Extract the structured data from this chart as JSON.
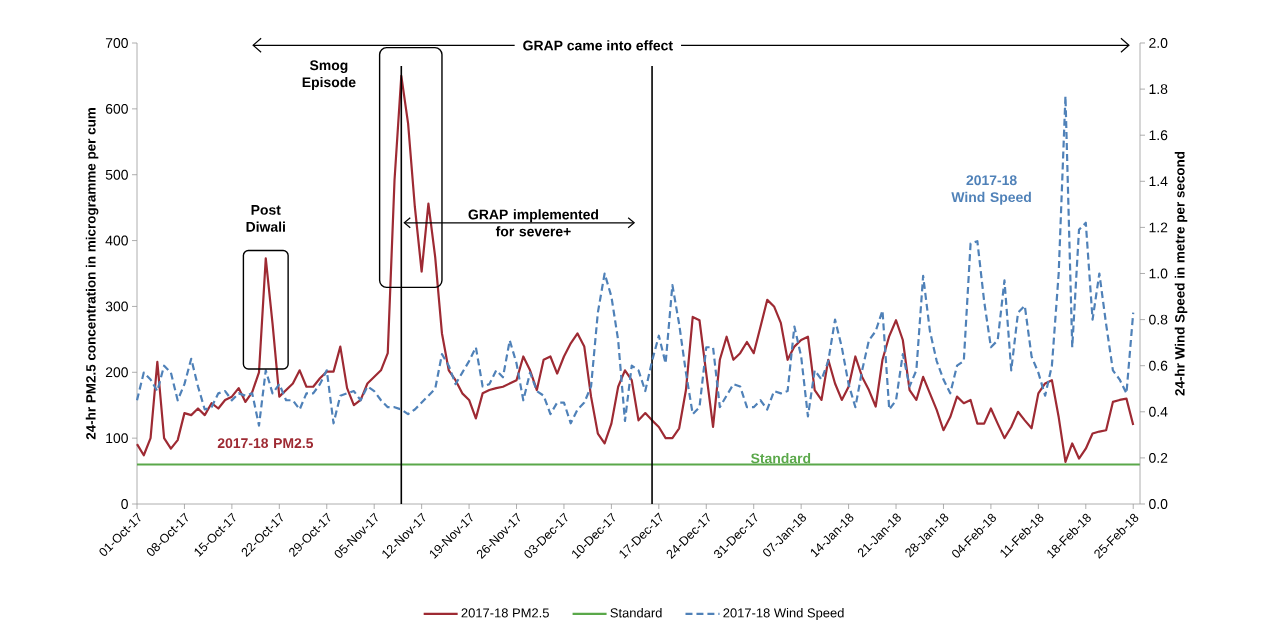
{
  "chart_data": {
    "type": "line",
    "ylabel": "24-hr PM2.5 concentration in microgramme per cum",
    "y2label": "24-hr Wind Speed in metre per second",
    "x": [
      "2017-10-01",
      "2017-10-02",
      "2017-10-03",
      "2017-10-04",
      "2017-10-05",
      "2017-10-06",
      "2017-10-07",
      "2017-10-08",
      "2017-10-09",
      "2017-10-10",
      "2017-10-11",
      "2017-10-12",
      "2017-10-13",
      "2017-10-14",
      "2017-10-15",
      "2017-10-16",
      "2017-10-17",
      "2017-10-18",
      "2017-10-19",
      "2017-10-20",
      "2017-10-21",
      "2017-10-22",
      "2017-10-23",
      "2017-10-24",
      "2017-10-25",
      "2017-10-26",
      "2017-10-27",
      "2017-10-28",
      "2017-10-29",
      "2017-10-30",
      "2017-10-31",
      "2017-11-01",
      "2017-11-02",
      "2017-11-03",
      "2017-11-04",
      "2017-11-05",
      "2017-11-06",
      "2017-11-07",
      "2017-11-08",
      "2017-11-09",
      "2017-11-10",
      "2017-11-11",
      "2017-11-12",
      "2017-11-13",
      "2017-11-14",
      "2017-11-15",
      "2017-11-16",
      "2017-11-17",
      "2017-11-18",
      "2017-11-19",
      "2017-11-20",
      "2017-11-21",
      "2017-11-22",
      "2017-11-23",
      "2017-11-24",
      "2017-11-25",
      "2017-11-26",
      "2017-11-27",
      "2017-11-28",
      "2017-11-29",
      "2017-11-30",
      "2017-12-01",
      "2017-12-02",
      "2017-12-03",
      "2017-12-04",
      "2017-12-05",
      "2017-12-06",
      "2017-12-07",
      "2017-12-08",
      "2017-12-09",
      "2017-12-10",
      "2017-12-11",
      "2017-12-12",
      "2017-12-13",
      "2017-12-14",
      "2017-12-15",
      "2017-12-16",
      "2017-12-17",
      "2017-12-18",
      "2017-12-19",
      "2017-12-20",
      "2017-12-21",
      "2017-12-22",
      "2017-12-23",
      "2017-12-24",
      "2017-12-25",
      "2017-12-26",
      "2017-12-27",
      "2017-12-28",
      "2017-12-29",
      "2017-12-30",
      "2017-12-31",
      "2018-01-01",
      "2018-01-02",
      "2018-01-03",
      "2018-01-04",
      "2018-01-05",
      "2018-01-06",
      "2018-01-07",
      "2018-01-08",
      "2018-01-09",
      "2018-01-10",
      "2018-01-11",
      "2018-01-12",
      "2018-01-13",
      "2018-01-14",
      "2018-01-15",
      "2018-01-16",
      "2018-01-17",
      "2018-01-18",
      "2018-01-19",
      "2018-01-20",
      "2018-01-21",
      "2018-01-22",
      "2018-01-23",
      "2018-01-24",
      "2018-01-25",
      "2018-01-26",
      "2018-01-27",
      "2018-01-28",
      "2018-01-29",
      "2018-01-30",
      "2018-01-31",
      "2018-02-01",
      "2018-02-02",
      "2018-02-03",
      "2018-02-04",
      "2018-02-05",
      "2018-02-06",
      "2018-02-07",
      "2018-02-08",
      "2018-02-09",
      "2018-02-10",
      "2018-02-11",
      "2018-02-12",
      "2018-02-13",
      "2018-02-14",
      "2018-02-15",
      "2018-02-16",
      "2018-02-17",
      "2018-02-18",
      "2018-02-19",
      "2018-02-20",
      "2018-02-21",
      "2018-02-22",
      "2018-02-23",
      "2018-02-24",
      "2018-02-25"
    ],
    "series": [
      {
        "name": "2017-18 PM2.5",
        "color": "#9e2a33",
        "line_style": "solid",
        "values": [
          91,
          74,
          100,
          216,
          100,
          84,
          97,
          138,
          135,
          145,
          135,
          153,
          145,
          158,
          163,
          176,
          155,
          170,
          200,
          373,
          274,
          163,
          173,
          183,
          203,
          178,
          178,
          191,
          201,
          201,
          239,
          176,
          150,
          158,
          183,
          193,
          203,
          229,
          492,
          650,
          578,
          451,
          353,
          456,
          375,
          259,
          203,
          188,
          168,
          158,
          130,
          168,
          173,
          176,
          178,
          183,
          188,
          224,
          203,
          173,
          219,
          224,
          198,
          224,
          244,
          259,
          239,
          163,
          107,
          92,
          122,
          178,
          203,
          188,
          127,
          138,
          127,
          117,
          100,
          100,
          115,
          173,
          284,
          279,
          198,
          117,
          219,
          254,
          219,
          229,
          246,
          229,
          269,
          310,
          300,
          275,
          219,
          239,
          249,
          254,
          173,
          158,
          219,
          183,
          158,
          178,
          224,
          193,
          173,
          148,
          219,
          255,
          279,
          249,
          173,
          158,
          193,
          168,
          143,
          112,
          132,
          163,
          153,
          158,
          122,
          122,
          145,
          122,
          100,
          117,
          140,
          127,
          115,
          168,
          183,
          188,
          132,
          64,
          92,
          69,
          84,
          107,
          110,
          112,
          155,
          158,
          160,
          120
        ]
      },
      {
        "name": "Standard",
        "color": "#5aa84a",
        "line_style": "solid",
        "x": [
          "2017-10-01",
          "2018-02-26"
        ],
        "values": [
          60,
          60
        ]
      },
      {
        "name": "2017-18 Wind Speed",
        "color": "#4f81b8",
        "line_style": "dashed",
        "axis": "y2",
        "values": [
          0.45,
          0.57,
          0.54,
          0.49,
          0.6,
          0.57,
          0.45,
          0.52,
          0.63,
          0.51,
          0.41,
          0.42,
          0.48,
          0.49,
          0.45,
          0.48,
          0.47,
          0.48,
          0.34,
          0.58,
          0.48,
          0.52,
          0.45,
          0.45,
          0.41,
          0.48,
          0.48,
          0.52,
          0.58,
          0.35,
          0.47,
          0.48,
          0.49,
          0.45,
          0.51,
          0.49,
          0.45,
          0.42,
          0.42,
          0.41,
          0.39,
          0.41,
          0.44,
          0.47,
          0.5,
          0.65,
          0.6,
          0.52,
          0.57,
          0.62,
          0.68,
          0.51,
          0.52,
          0.58,
          0.55,
          0.71,
          0.61,
          0.45,
          0.57,
          0.49,
          0.47,
          0.39,
          0.44,
          0.44,
          0.35,
          0.41,
          0.44,
          0.51,
          0.83,
          1.0,
          0.9,
          0.71,
          0.36,
          0.6,
          0.58,
          0.49,
          0.62,
          0.73,
          0.61,
          0.95,
          0.78,
          0.57,
          0.39,
          0.42,
          0.68,
          0.68,
          0.42,
          0.47,
          0.52,
          0.51,
          0.42,
          0.42,
          0.45,
          0.41,
          0.49,
          0.48,
          0.49,
          0.77,
          0.64,
          0.38,
          0.58,
          0.54,
          0.62,
          0.8,
          0.68,
          0.52,
          0.42,
          0.58,
          0.71,
          0.75,
          0.84,
          0.41,
          0.45,
          0.65,
          0.51,
          0.58,
          0.99,
          0.75,
          0.62,
          0.54,
          0.48,
          0.6,
          0.62,
          1.13,
          1.14,
          0.88,
          0.68,
          0.71,
          0.97,
          0.58,
          0.83,
          0.86,
          0.64,
          0.57,
          0.47,
          0.6,
          1.0,
          1.77,
          0.68,
          1.19,
          1.22,
          0.8,
          1.0,
          0.78,
          0.58,
          0.54,
          0.48,
          0.83
        ]
      }
    ],
    "xlim": [
      "2017-10-01",
      "2018-02-26"
    ],
    "xticks": [
      {
        "value": "2017-10-01",
        "label": "01-Oct-17"
      },
      {
        "value": "2017-10-08",
        "label": "08-Oct-17"
      },
      {
        "value": "2017-10-15",
        "label": "15-Oct-17"
      },
      {
        "value": "2017-10-22",
        "label": "22-Oct-17"
      },
      {
        "value": "2017-10-29",
        "label": "29-Oct-17"
      },
      {
        "value": "2017-11-05",
        "label": "05-Nov-17"
      },
      {
        "value": "2017-11-12",
        "label": "12-Nov-17"
      },
      {
        "value": "2017-11-19",
        "label": "19-Nov-17"
      },
      {
        "value": "2017-11-26",
        "label": "26-Nov-17"
      },
      {
        "value": "2017-12-03",
        "label": "03-Dec-17"
      },
      {
        "value": "2017-12-10",
        "label": "10-Dec-17"
      },
      {
        "value": "2017-12-17",
        "label": "17-Dec-17"
      },
      {
        "value": "2017-12-24",
        "label": "24-Dec-17"
      },
      {
        "value": "2017-12-31",
        "label": "31-Dec-17"
      },
      {
        "value": "2018-01-07",
        "label": "07-Jan-18"
      },
      {
        "value": "2018-01-14",
        "label": "14-Jan-18"
      },
      {
        "value": "2018-01-21",
        "label": "21-Jan-18"
      },
      {
        "value": "2018-01-28",
        "label": "28-Jan-18"
      },
      {
        "value": "2018-02-04",
        "label": "04-Feb-18"
      },
      {
        "value": "2018-02-11",
        "label": "11-Feb-18"
      },
      {
        "value": "2018-02-18",
        "label": "18-Feb-18"
      },
      {
        "value": "2018-02-25",
        "label": "25-Feb-18"
      }
    ],
    "ylim": [
      0,
      700
    ],
    "yticks": [
      0,
      100,
      200,
      300,
      400,
      500,
      600,
      700
    ],
    "y2lim": [
      0,
      2.0
    ],
    "y2ticks": [
      {
        "value": 0,
        "label": "0.0"
      },
      {
        "value": 0.2,
        "label": "0.2"
      },
      {
        "value": 0.4,
        "label": "0.4"
      },
      {
        "value": 0.6,
        "label": "0.6"
      },
      {
        "value": 0.8,
        "label": "0.8"
      },
      {
        "value": 1.0,
        "label": "1.0"
      },
      {
        "value": 1.2,
        "label": "1.2"
      },
      {
        "value": 1.4,
        "label": "1.4"
      },
      {
        "value": 1.6,
        "label": "1.6"
      },
      {
        "value": 1.8,
        "label": "1.8"
      },
      {
        "value": 2.0,
        "label": "2.0"
      }
    ],
    "ref_lines": [
      {
        "axis": "x",
        "value": "2017-11-09",
        "color": "#000000"
      },
      {
        "axis": "x",
        "value": "2017-12-16",
        "color": "#000000"
      }
    ],
    "annotations": [
      {
        "text": "Post Diwali",
        "x": "2017-10-20",
        "y": 373
      },
      "Smog Episode",
      "2017-18 PM2.5",
      {
        "text": "Standard",
        "x": "2018-01-04",
        "y": 60
      },
      "2017-18 Wind Speed",
      "GRAP came into effect",
      "GRAP implemented for severe+"
    ],
    "grid": false,
    "marker": "none",
    "legend": "bottom"
  }
}
